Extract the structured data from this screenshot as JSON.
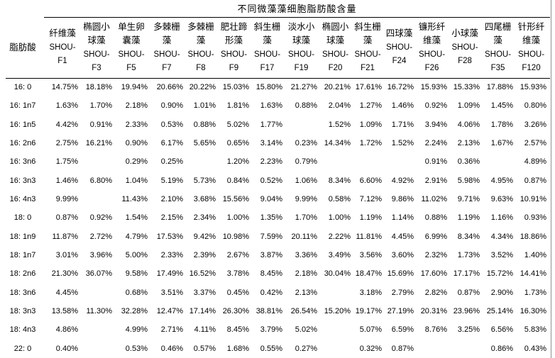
{
  "chart_data": {
    "type": "table",
    "title": "不同微藻藻细胞脂肪酸含量",
    "row_header": "脂肪酸",
    "strain_prefix": "SHOU-",
    "columns": [
      {
        "species": "纤维藻",
        "strain": "F1"
      },
      {
        "species": "椭圆小球藻",
        "strain": "F3"
      },
      {
        "species": "单生卵囊藻",
        "strain": "F5"
      },
      {
        "species": "多棘栅藻",
        "strain": "F7"
      },
      {
        "species": "多棘栅藻",
        "strain": "F8"
      },
      {
        "species": "肥壮蹄形藻",
        "strain": "F9"
      },
      {
        "species": "斜生栅藻",
        "strain": "F17"
      },
      {
        "species": "淡水小球藻",
        "strain": "F19"
      },
      {
        "species": "椭圆小球藻",
        "strain": "F20"
      },
      {
        "species": "斜生栅藻",
        "strain": "F21"
      },
      {
        "species": "四球藻",
        "strain": "F24"
      },
      {
        "species": "镰形纤维藻",
        "strain": "F26"
      },
      {
        "species": "小球藻",
        "strain": "F28"
      },
      {
        "species": "四尾栅藻",
        "strain": "F35"
      },
      {
        "species": "针形纤维藻",
        "strain": "F120"
      }
    ],
    "rows": [
      {
        "label": "16: 0",
        "values": [
          "14.75%",
          "18.18%",
          "19.94%",
          "20.66%",
          "20.22%",
          "15.03%",
          "15.80%",
          "21.27%",
          "20.21%",
          "17.61%",
          "16.72%",
          "15.93%",
          "15.33%",
          "17.88%",
          "15.93%"
        ]
      },
      {
        "label": "16: 1n7",
        "values": [
          "1.63%",
          "1.70%",
          "2.18%",
          "0.90%",
          "1.01%",
          "1.81%",
          "1.63%",
          "0.88%",
          "2.04%",
          "1.27%",
          "1.46%",
          "0.92%",
          "1.09%",
          "1.45%",
          "0.80%"
        ]
      },
      {
        "label": "16: 1n5",
        "values": [
          "4.42%",
          "0.91%",
          "2.33%",
          "0.53%",
          "0.88%",
          "5.02%",
          "1.77%",
          "",
          "1.52%",
          "1.09%",
          "1.71%",
          "3.94%",
          "4.06%",
          "1.78%",
          "3.26%"
        ]
      },
      {
        "label": "16: 2n6",
        "values": [
          "2.75%",
          "16.21%",
          "0.90%",
          "6.17%",
          "5.65%",
          "0.65%",
          "3.14%",
          "0.23%",
          "14.34%",
          "1.72%",
          "1.52%",
          "2.24%",
          "2.13%",
          "1.67%",
          "2.57%"
        ]
      },
      {
        "label": "16: 3n6",
        "values": [
          "1.75%",
          "",
          "0.29%",
          "0.25%",
          "",
          "1.20%",
          "2.23%",
          "0.79%",
          "",
          "",
          "",
          "0.91%",
          "0.36%",
          "",
          "4.89%"
        ]
      },
      {
        "label": "16: 3n3",
        "values": [
          "1.46%",
          "6.80%",
          "1.04%",
          "5.19%",
          "5.73%",
          "0.84%",
          "0.52%",
          "1.06%",
          "8.34%",
          "6.60%",
          "4.92%",
          "2.91%",
          "5.98%",
          "4.95%",
          "0.87%"
        ]
      },
      {
        "label": "16: 4n3",
        "values": [
          "9.99%",
          "",
          "11.43%",
          "2.10%",
          "3.68%",
          "15.56%",
          "9.04%",
          "9.99%",
          "0.58%",
          "7.12%",
          "9.86%",
          "11.02%",
          "9.71%",
          "9.63%",
          "10.91%"
        ]
      },
      {
        "label": "18: 0",
        "values": [
          "0.87%",
          "0.92%",
          "1.54%",
          "2.15%",
          "2.34%",
          "1.00%",
          "1.35%",
          "1.70%",
          "1.00%",
          "1.19%",
          "1.14%",
          "0.88%",
          "1.19%",
          "1.16%",
          "0.93%"
        ]
      },
      {
        "label": "18: 1n9",
        "values": [
          "11.87%",
          "2.72%",
          "4.79%",
          "17.53%",
          "9.42%",
          "10.98%",
          "7.59%",
          "20.11%",
          "2.22%",
          "11.81%",
          "4.45%",
          "6.99%",
          "8.34%",
          "4.34%",
          "18.86%"
        ]
      },
      {
        "label": "18: 1n7",
        "values": [
          "3.01%",
          "3.96%",
          "5.00%",
          "2.33%",
          "2.39%",
          "2.67%",
          "3.87%",
          "3.36%",
          "3.49%",
          "3.56%",
          "3.60%",
          "2.32%",
          "1.73%",
          "3.52%",
          "1.40%"
        ]
      },
      {
        "label": "18: 2n6",
        "values": [
          "21.30%",
          "36.07%",
          "9.58%",
          "17.49%",
          "16.52%",
          "3.78%",
          "8.45%",
          "2.18%",
          "30.04%",
          "18.47%",
          "15.69%",
          "17.60%",
          "17.17%",
          "15.72%",
          "14.41%"
        ]
      },
      {
        "label": "18: 3n6",
        "values": [
          "4.45%",
          "",
          "0.68%",
          "3.51%",
          "3.37%",
          "0.45%",
          "0.42%",
          "2.13%",
          "",
          "3.18%",
          "2.79%",
          "2.82%",
          "0.87%",
          "2.90%",
          "1.73%"
        ]
      },
      {
        "label": "18: 3n3",
        "values": [
          "13.58%",
          "11.30%",
          "32.28%",
          "12.47%",
          "17.14%",
          "26.30%",
          "38.81%",
          "26.54%",
          "15.20%",
          "19.17%",
          "27.19%",
          "20.31%",
          "23.96%",
          "25.14%",
          "16.30%"
        ]
      },
      {
        "label": "18: 4n3",
        "values": [
          "4.86%",
          "",
          "4.99%",
          "2.71%",
          "4.11%",
          "8.45%",
          "3.79%",
          "5.02%",
          "",
          "5.07%",
          "6.59%",
          "8.76%",
          "3.25%",
          "6.56%",
          "5.83%"
        ]
      },
      {
        "label": "22: 0",
        "values": [
          "0.40%",
          "",
          "0.53%",
          "0.46%",
          "0.57%",
          "1.68%",
          "0.55%",
          "0.27%",
          "",
          "0.32%",
          "0.87%",
          "",
          "",
          "0.86%",
          "0.43%"
        ]
      }
    ],
    "colors": {
      "text": "#000000",
      "rule": "#000000",
      "page_edge": "#8f8f8f",
      "background": "#ffffff"
    }
  }
}
